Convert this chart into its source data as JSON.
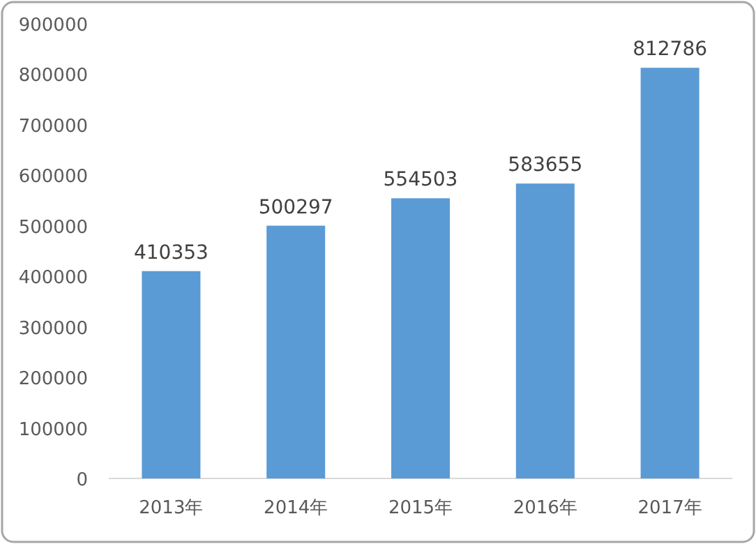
{
  "chart_data": {
    "type": "bar",
    "categories": [
      "2013年",
      "2014年",
      "2015年",
      "2016年",
      "2017年"
    ],
    "values": [
      410353,
      500297,
      554503,
      583655,
      812786
    ],
    "color": "#5b9bd5",
    "ylim": [
      0,
      900000
    ],
    "yticks": [
      0,
      100000,
      200000,
      300000,
      400000,
      500000,
      600000,
      700000,
      800000,
      900000
    ],
    "data_labels": true
  }
}
